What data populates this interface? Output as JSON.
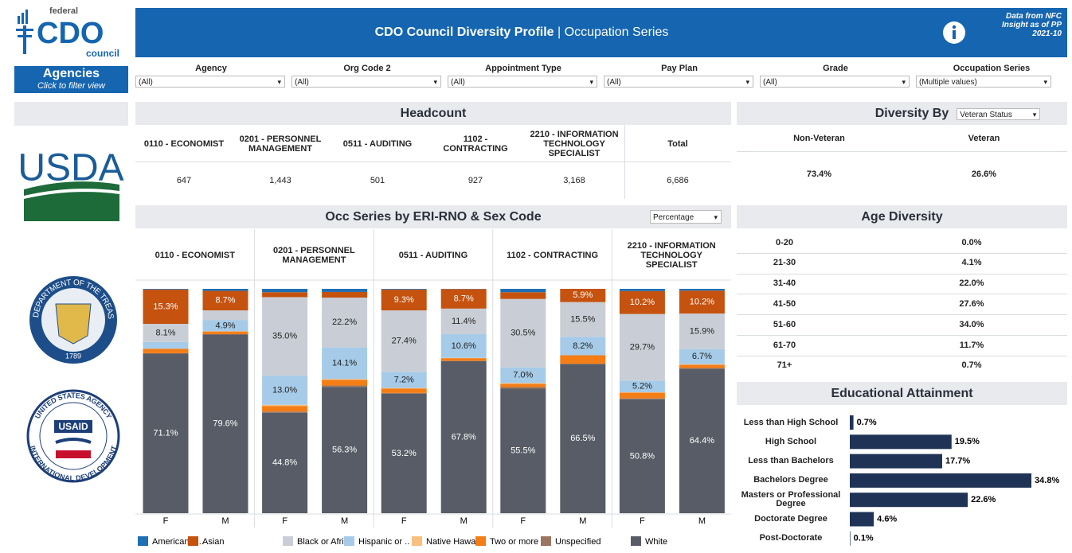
{
  "sidebar": {
    "logo": {
      "top": "federal",
      "main": "CDO",
      "bottom": "council"
    },
    "agencies": {
      "title": "Agencies",
      "subtitle": "Click to filter view"
    },
    "usda": "USDA",
    "treasury_seal": {
      "ring": "THE DEPARTMENT OF THE TREASURY",
      "year": "1789"
    },
    "usaid_seal": {
      "top": "UNITED STATES AGENCY",
      "bottom": "INTERNATIONAL DEVELOPMENT",
      "badge": "USAID"
    }
  },
  "header": {
    "title_bold": "CDO Council Diversity Profile",
    "title_rest": "| Occupation Series",
    "source": [
      "Data from NFC",
      "Insight as of PP",
      "2021-10"
    ]
  },
  "filters": [
    {
      "label": "Agency",
      "value": "(All)"
    },
    {
      "label": "Org Code 2",
      "value": "(All)"
    },
    {
      "label": "Appointment Type",
      "value": "(All)"
    },
    {
      "label": "Pay Plan",
      "value": "(All)"
    },
    {
      "label": "Grade",
      "value": "(All)"
    },
    {
      "label": "Occupation Series",
      "value": "(Multiple values)"
    }
  ],
  "headcount": {
    "title": "Headcount",
    "columns": [
      "0110 - ECONOMIST",
      "0201 - PERSONNEL MANAGEMENT",
      "0511 - AUDITING",
      "1102 - CONTRACTING",
      "2210 - INFORMATION TECHNOLOGY SPECIALIST",
      "Total"
    ],
    "values": [
      "647",
      "1,443",
      "501",
      "927",
      "3,168",
      "6,686"
    ]
  },
  "diversity_by": {
    "title": "Diversity By",
    "selector": "Veteran Status",
    "columns": [
      "Non-Veteran",
      "Veteran"
    ],
    "values": [
      "73.4%",
      "26.6%"
    ]
  },
  "age_diversity": {
    "title": "Age Diversity",
    "rows": [
      [
        "0-20",
        "0.0%"
      ],
      [
        "21-30",
        "4.1%"
      ],
      [
        "31-40",
        "22.0%"
      ],
      [
        "41-50",
        "27.6%"
      ],
      [
        "51-60",
        "34.0%"
      ],
      [
        "61-70",
        "11.7%"
      ],
      [
        "71+",
        "0.7%"
      ]
    ]
  },
  "chart_data": [
    {
      "type": "stacked_bar",
      "title": "Occ Series by ERI-RNO & Sex Code",
      "selector": "Percentage",
      "groups": [
        "0110 - ECONOMIST",
        "0201 - PERSONNEL MANAGEMENT",
        "0511 - AUDITING",
        "1102 - CONTRACTING",
        "2210 - INFORMATION TECHNOLOGY SPECIALIST"
      ],
      "categories": [
        "F",
        "M",
        "F",
        "M",
        "F",
        "M",
        "F",
        "M",
        "F",
        "M"
      ],
      "ylim": [
        0,
        100
      ],
      "series": [
        {
          "name": "White",
          "color": "#575c66",
          "values": [
            71.1,
            79.6,
            44.8,
            56.3,
            53.2,
            67.8,
            55.5,
            66.5,
            50.8,
            64.4
          ],
          "value_labels": [
            "71.1%",
            "79.6%",
            "44.8%",
            "56.3%",
            "53.2%",
            "67.8%",
            "55.5%",
            "66.5%",
            "50.8%",
            "64.4%"
          ]
        },
        {
          "name": "Unspecified",
          "color": "#9a7560",
          "values": [
            0.2,
            0.2,
            0.5,
            0.6,
            0.4,
            0.1,
            0.7,
            0.1,
            0.4,
            0.3
          ],
          "value_labels": [
            null,
            null,
            null,
            null,
            null,
            null,
            null,
            null,
            null,
            null
          ]
        },
        {
          "name": "Two or more",
          "color": "#f47d16",
          "values": [
            2.0,
            1.2,
            2.5,
            2.5,
            2.0,
            1.2,
            1.5,
            3.8,
            2.5,
            1.5
          ],
          "value_labels": [
            null,
            null,
            null,
            null,
            null,
            null,
            null,
            null,
            null,
            null
          ]
        },
        {
          "name": "Native Hawa..",
          "color": "#f9bf7e",
          "values": [
            0.0,
            0.1,
            0.5,
            0.4,
            0.2,
            0.1,
            0.3,
            0.0,
            0.2,
            0.2
          ],
          "value_labels": [
            null,
            null,
            null,
            null,
            null,
            null,
            null,
            null,
            null,
            null
          ]
        },
        {
          "name": "Hispanic or ..",
          "color": "#a6cbe8",
          "values": [
            3.0,
            4.9,
            13.0,
            14.1,
            7.2,
            10.6,
            7.0,
            8.2,
            5.2,
            6.7
          ],
          "value_labels": [
            null,
            "4.9%",
            "13.0%",
            "14.1%",
            "7.2%",
            "10.6%",
            "7.0%",
            "8.2%",
            "5.2%",
            "6.7%"
          ]
        },
        {
          "name": "Black or Afri..",
          "color": "#c9ced6",
          "values": [
            8.1,
            4.4,
            35.0,
            22.2,
            27.4,
            11.4,
            30.5,
            15.5,
            29.7,
            15.9
          ],
          "value_labels": [
            "8.1%",
            null,
            "35.0%",
            "22.2%",
            "27.4%",
            "11.4%",
            "30.5%",
            "15.5%",
            "29.7%",
            "15.9%"
          ]
        },
        {
          "name": "Asian",
          "color": "#c5520f",
          "values": [
            15.3,
            8.7,
            2.2,
            2.5,
            9.3,
            8.7,
            3.0,
            5.9,
            10.2,
            10.2
          ],
          "value_labels": [
            "15.3%",
            "8.7%",
            null,
            null,
            "9.3%",
            "8.7%",
            null,
            "5.9%",
            "10.2%",
            "10.2%"
          ]
        },
        {
          "name": "American In..",
          "color": "#1f6fb4",
          "values": [
            0.3,
            0.9,
            1.5,
            1.4,
            0.3,
            0.1,
            1.5,
            0.0,
            1.0,
            0.8
          ],
          "value_labels": [
            null,
            null,
            null,
            null,
            null,
            null,
            null,
            null,
            null,
            null
          ]
        }
      ]
    },
    {
      "type": "hbar",
      "title": "Educational Attainment",
      "categories": [
        "Less than High School",
        "High School",
        "Less than Bachelors",
        "Bachelors Degree",
        "Masters or Professional Degree",
        "Doctorate Degree",
        "Post-Doctorate"
      ],
      "values": [
        0.7,
        19.5,
        17.7,
        34.8,
        22.6,
        4.6,
        0.1
      ],
      "value_labels": [
        "0.7%",
        "19.5%",
        "17.7%",
        "34.8%",
        "22.6%",
        "4.6%",
        "0.1%"
      ],
      "color": "#1f3356",
      "xlim": [
        0,
        38
      ]
    }
  ]
}
